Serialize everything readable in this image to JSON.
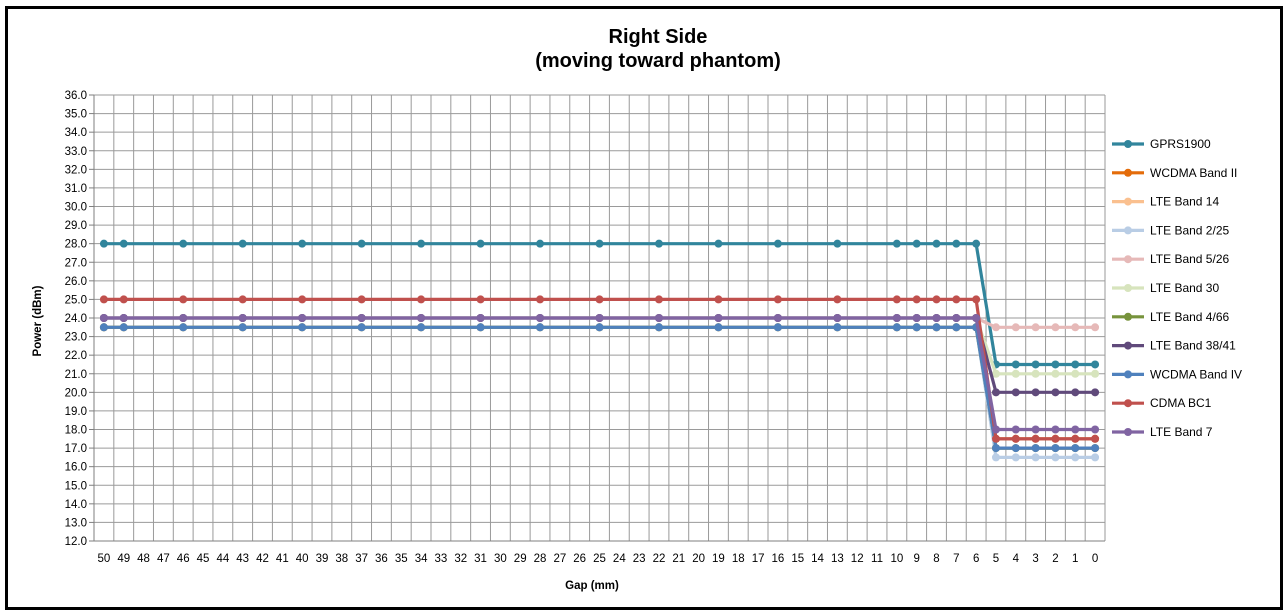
{
  "chart_data": {
    "type": "line",
    "title": "Right Side",
    "subtitle": "(moving toward phantom)",
    "xlabel": "Gap (mm)",
    "ylabel": "Power (dBm)",
    "ylim": [
      12.0,
      36.0
    ],
    "ytick_step": 1.0,
    "x_ticks": [
      50,
      49,
      48,
      47,
      46,
      45,
      44,
      43,
      42,
      41,
      40,
      39,
      38,
      37,
      36,
      35,
      34,
      33,
      32,
      31,
      30,
      29,
      28,
      27,
      26,
      25,
      24,
      23,
      22,
      21,
      20,
      19,
      18,
      17,
      16,
      15,
      14,
      13,
      12,
      11,
      10,
      9,
      8,
      7,
      6,
      5,
      4,
      3,
      2,
      1,
      0
    ],
    "x": [
      50,
      49,
      46,
      43,
      40,
      37,
      34,
      31,
      28,
      25,
      22,
      19,
      16,
      13,
      10,
      9,
      8,
      7,
      6,
      5,
      4,
      3,
      2,
      1,
      0
    ],
    "grid": true,
    "legend_position": "right",
    "series": [
      {
        "name": "GPRS1900",
        "color": "#31859c",
        "values": [
          28,
          28,
          28,
          28,
          28,
          28,
          28,
          28,
          28,
          28,
          28,
          28,
          28,
          28,
          28,
          28,
          28,
          28,
          28,
          21.5,
          21.5,
          21.5,
          21.5,
          21.5,
          21.5
        ]
      },
      {
        "name": "WCDMA Band II",
        "color": "#e46c0a",
        "values": [
          23.5,
          23.5,
          23.5,
          23.5,
          23.5,
          23.5,
          23.5,
          23.5,
          23.5,
          23.5,
          23.5,
          23.5,
          23.5,
          23.5,
          23.5,
          23.5,
          23.5,
          23.5,
          23.5,
          17.5,
          17.5,
          17.5,
          17.5,
          17.5,
          17.5
        ]
      },
      {
        "name": "LTE Band 14",
        "color": "#fac08f",
        "values": [
          23.5,
          23.5,
          23.5,
          23.5,
          23.5,
          23.5,
          23.5,
          23.5,
          23.5,
          23.5,
          23.5,
          23.5,
          23.5,
          23.5,
          23.5,
          23.5,
          23.5,
          23.5,
          23.5,
          17,
          17,
          17,
          17,
          17,
          17
        ]
      },
      {
        "name": "LTE Band 2/25",
        "color": "#b9cde5",
        "values": [
          23.5,
          23.5,
          23.5,
          23.5,
          23.5,
          23.5,
          23.5,
          23.5,
          23.5,
          23.5,
          23.5,
          23.5,
          23.5,
          23.5,
          23.5,
          23.5,
          23.5,
          23.5,
          23.5,
          16.5,
          16.5,
          16.5,
          16.5,
          16.5,
          16.5
        ]
      },
      {
        "name": "LTE Band 5/26",
        "color": "#e6b9b8",
        "values": [
          24,
          24,
          24,
          24,
          24,
          24,
          24,
          24,
          24,
          24,
          24,
          24,
          24,
          24,
          24,
          24,
          24,
          24,
          24,
          23.5,
          23.5,
          23.5,
          23.5,
          23.5,
          23.5
        ]
      },
      {
        "name": "LTE Band 30",
        "color": "#d7e4bd",
        "values": [
          24,
          24,
          24,
          24,
          24,
          24,
          24,
          24,
          24,
          24,
          24,
          24,
          24,
          24,
          24,
          24,
          24,
          24,
          24,
          21,
          21,
          21,
          21,
          21,
          21
        ]
      },
      {
        "name": "LTE Band 4/66",
        "color": "#77933c",
        "values": [
          23.5,
          23.5,
          23.5,
          23.5,
          23.5,
          23.5,
          23.5,
          23.5,
          23.5,
          23.5,
          23.5,
          23.5,
          23.5,
          23.5,
          23.5,
          23.5,
          23.5,
          23.5,
          23.5,
          17,
          17,
          17,
          17,
          17,
          17
        ]
      },
      {
        "name": "LTE Band 38/41",
        "color": "#604a7b",
        "values": [
          24,
          24,
          24,
          24,
          24,
          24,
          24,
          24,
          24,
          24,
          24,
          24,
          24,
          24,
          24,
          24,
          24,
          24,
          24,
          20,
          20,
          20,
          20,
          20,
          20
        ]
      },
      {
        "name": "WCDMA Band IV",
        "color": "#4f81bd",
        "values": [
          23.5,
          23.5,
          23.5,
          23.5,
          23.5,
          23.5,
          23.5,
          23.5,
          23.5,
          23.5,
          23.5,
          23.5,
          23.5,
          23.5,
          23.5,
          23.5,
          23.5,
          23.5,
          23.5,
          17,
          17,
          17,
          17,
          17,
          17
        ]
      },
      {
        "name": "CDMA BC1",
        "color": "#c0504d",
        "values": [
          25,
          25,
          25,
          25,
          25,
          25,
          25,
          25,
          25,
          25,
          25,
          25,
          25,
          25,
          25,
          25,
          25,
          25,
          25,
          17.5,
          17.5,
          17.5,
          17.5,
          17.5,
          17.5
        ]
      },
      {
        "name": "LTE Band 7",
        "color": "#8064a2",
        "values": [
          24,
          24,
          24,
          24,
          24,
          24,
          24,
          24,
          24,
          24,
          24,
          24,
          24,
          24,
          24,
          24,
          24,
          24,
          24,
          18,
          18,
          18,
          18,
          18,
          18
        ]
      }
    ]
  }
}
